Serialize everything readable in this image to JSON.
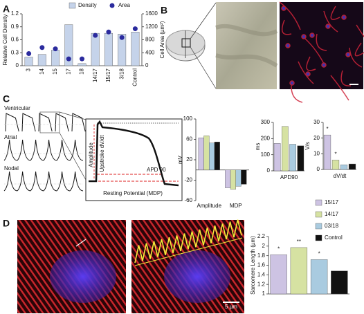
{
  "figure": {
    "panel_labels": [
      "A",
      "B",
      "C",
      "D"
    ],
    "trace_labels": [
      "Ventricular",
      "Atrial",
      "Nodal"
    ],
    "ap_labels": [
      "Amplitude",
      "Upstroke dV/dt",
      "APD 90",
      "Resting Potential (MDP)"
    ],
    "scale_label": "5 µm"
  },
  "chart_data": [
    {
      "type": "bar",
      "ylabel": "Relative Cell Density",
      "y2label": "Cell Area (µm²)",
      "categories": [
        "3",
        "14",
        "15",
        "17",
        "18",
        "14/17",
        "15/17",
        "3/18",
        "Control"
      ],
      "series": [
        {
          "name": "Density",
          "color": "#c5d3ea",
          "values": [
            0.2,
            0.26,
            0.36,
            0.95,
            0.05,
            0.75,
            0.75,
            0.73,
            0.78
          ]
        },
        {
          "name": "Area",
          "color": "#2b2b9e",
          "axis": "y2",
          "marker": "circle",
          "values": [
            374,
            560,
            520,
            210,
            210,
            935,
            1040,
            870,
            1140
          ]
        }
      ],
      "ylim": [
        0,
        1.2
      ],
      "yticks": [
        0,
        0.3,
        0.6,
        0.9,
        1.2
      ],
      "y2lim": [
        0,
        1600
      ],
      "y2ticks": [
        0,
        400,
        800,
        1200,
        1600
      ]
    },
    {
      "type": "bar",
      "ylabel": "mV",
      "categories": [
        "Amplitude",
        "MDP"
      ],
      "series": [
        {
          "name": "15/17",
          "color": "#cdc3e3",
          "values": [
            63,
            -35
          ]
        },
        {
          "name": "14/17",
          "color": "#d6e2a2",
          "values": [
            67,
            -38
          ]
        },
        {
          "name": "03/18",
          "color": "#a9cbe0",
          "values": [
            53,
            -32
          ]
        },
        {
          "name": "Control",
          "color": "#111111",
          "values": [
            55,
            -28
          ]
        }
      ],
      "ylim": [
        -60,
        100
      ],
      "yticks": [
        -60,
        -20,
        20,
        60,
        100
      ]
    },
    {
      "type": "bar",
      "ylabel": "ms",
      "xlabel": "APD90",
      "values": [
        170,
        275,
        165,
        155
      ],
      "colors": [
        "#cdc3e3",
        "#d6e2a2",
        "#a9cbe0",
        "#111111"
      ],
      "ylim": [
        0,
        300
      ],
      "yticks": [
        0,
        100,
        200,
        300
      ]
    },
    {
      "type": "bar",
      "ylabel": "V/s",
      "xlabel": "dV/dt",
      "values": [
        22,
        6,
        3,
        3.5
      ],
      "colors": [
        "#cdc3e3",
        "#d6e2a2",
        "#a9cbe0",
        "#111111"
      ],
      "significance": [
        "*",
        "*",
        null,
        null
      ],
      "ylim": [
        0,
        30
      ],
      "yticks": [
        0,
        10,
        20,
        30
      ]
    },
    {
      "type": "bar",
      "ylabel": "Sarcomere Length (µm)",
      "values": [
        1.82,
        1.97,
        1.72,
        1.48
      ],
      "colors": [
        "#cdc3e3",
        "#d6e2a2",
        "#a9cbe0",
        "#111111"
      ],
      "significance": [
        "*",
        "**",
        "*",
        null
      ],
      "ylim": [
        1,
        2.2
      ],
      "yticks": [
        1,
        1.2,
        1.4,
        1.6,
        1.8,
        2,
        2.2
      ]
    }
  ]
}
